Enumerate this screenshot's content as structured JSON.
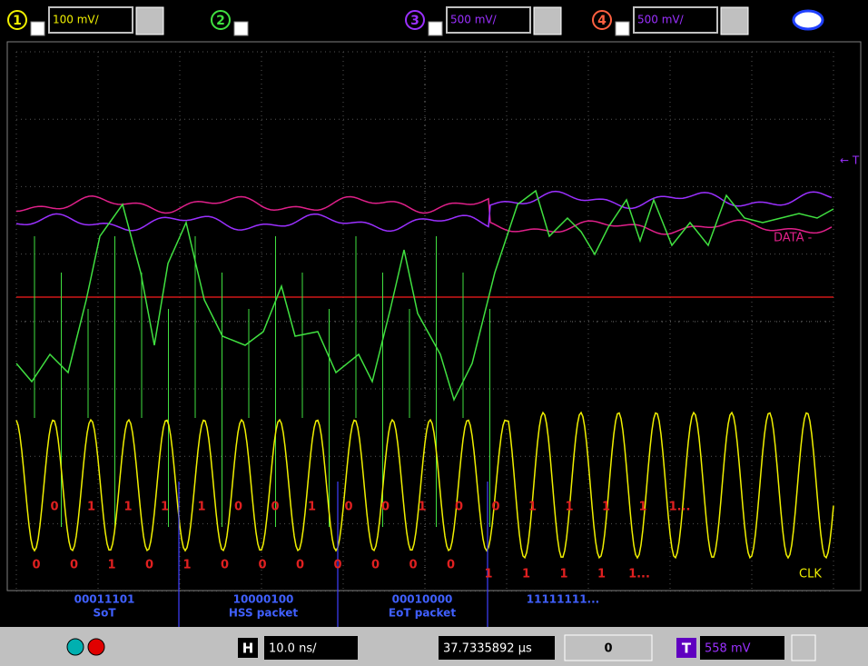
{
  "toolbar": {
    "channels": [
      {
        "number": "1",
        "scale": "100 mV/"
      },
      {
        "number": "2"
      },
      {
        "number": "3",
        "scale": "500 mV/"
      },
      {
        "number": "4",
        "scale": "500 mV/"
      }
    ]
  },
  "screen": {
    "trigger_marker": "← T",
    "data_label": "DATA -",
    "clock_label": "CLK",
    "bits_upper": [
      "0",
      "1",
      "1",
      "1",
      "1",
      "0",
      "0",
      "1",
      "0",
      "0",
      "1",
      "0",
      "0",
      "1",
      "1",
      "1",
      "1",
      "1..."
    ],
    "bits_lower": [
      "0",
      "0",
      "1",
      "0",
      "1",
      "0",
      "0",
      "0",
      "0",
      "0",
      "0",
      "0",
      "1",
      "1",
      "1",
      "1",
      "1..."
    ]
  },
  "annotations": [
    {
      "bits": "00011101",
      "label": "SoT"
    },
    {
      "bits": "10000100",
      "label": "HSS packet"
    },
    {
      "bits": "00010000",
      "label": "EoT packet"
    },
    {
      "bits": "11111111..."
    }
  ],
  "bottom_bar": {
    "horizontal_button": "H",
    "timebase": "10.0 ns/",
    "delay": "37.7335892 µs",
    "nav_value": "0",
    "trigger_button": "T",
    "trigger_level": "558 mV"
  }
}
